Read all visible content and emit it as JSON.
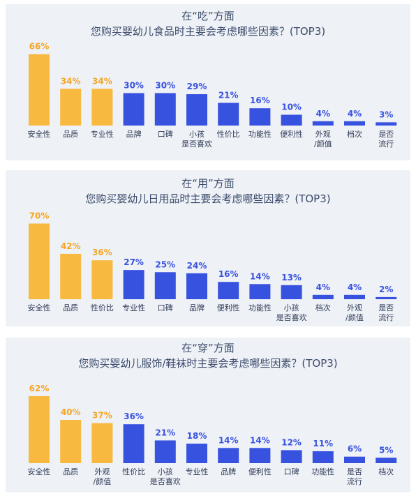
{
  "colors": {
    "highlight": "#f8b940",
    "normal": "#3852e0",
    "label_highlight": "#f5a623",
    "label_normal": "#3852e0",
    "panel_bg": "#eef1f6"
  },
  "chart_data": [
    {
      "type": "bar",
      "title": "在“吃”方面",
      "subtitle": "您购买婴幼儿食品时主要会考虑哪些因素？(TOP3)",
      "categories": [
        "安全性",
        "品质",
        "专业性",
        "品牌",
        "口碑",
        "小孩\n是否喜欢",
        "性价比",
        "功能性",
        "便利性",
        "外观\n/颜值",
        "档次",
        "是否\n流行"
      ],
      "values": [
        66,
        34,
        34,
        30,
        30,
        29,
        21,
        16,
        10,
        4,
        4,
        3
      ],
      "value_labels": [
        "66%",
        "34%",
        "34%",
        "30%",
        "30%",
        "29%",
        "21%",
        "16%",
        "10%",
        "4%",
        "4%",
        "3%"
      ],
      "highlight_top": 3,
      "ylim": [
        0,
        70
      ]
    },
    {
      "type": "bar",
      "title": "在“用”方面",
      "subtitle": "您购买婴幼儿日用品时主要会考虑哪些因素？(TOP3)",
      "categories": [
        "安全性",
        "品质",
        "性价比",
        "专业性",
        "口碑",
        "品牌",
        "便利性",
        "功能性",
        "小孩\n是否喜欢",
        "档次",
        "外观\n/颜值",
        "是否\n流行"
      ],
      "values": [
        70,
        42,
        36,
        27,
        25,
        24,
        16,
        14,
        13,
        4,
        4,
        2
      ],
      "value_labels": [
        "70%",
        "42%",
        "36%",
        "27%",
        "25%",
        "24%",
        "16%",
        "14%",
        "13%",
        "4%",
        "4%",
        "2%"
      ],
      "highlight_top": 3,
      "ylim": [
        0,
        70
      ]
    },
    {
      "type": "bar",
      "title": "在“穿”方面",
      "subtitle": "您购买婴幼儿服饰/鞋袜时主要会考虑哪些因素？(TOP3)",
      "categories": [
        "安全性",
        "品质",
        "外观\n/颜值",
        "性价比",
        "小孩\n是否喜欢",
        "专业性",
        "品牌",
        "便利性",
        "口碑",
        "功能性",
        "是否\n流行",
        "档次"
      ],
      "values": [
        62,
        40,
        37,
        36,
        21,
        18,
        14,
        14,
        12,
        11,
        6,
        5
      ],
      "value_labels": [
        "62%",
        "40%",
        "37%",
        "36%",
        "21%",
        "18%",
        "14%",
        "14%",
        "12%",
        "11%",
        "6%",
        "5%"
      ],
      "highlight_top": 3,
      "ylim": [
        0,
        70
      ]
    }
  ]
}
